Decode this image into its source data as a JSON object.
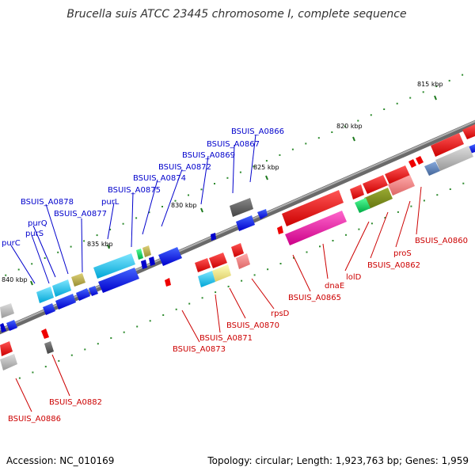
{
  "title": "Brucella suis ATCC 23445 chromosome I, complete sequence",
  "footer": {
    "accession": "Accession: NC_010169",
    "summary": "Topology: circular; Length: 1,923,763 bp; Genes: 1,959"
  },
  "ticks": {
    "t815": "815 kbp",
    "t820": "820 kbp",
    "t825": "825 kbp",
    "t830": "830 kbp",
    "t835": "835 kbp",
    "t840": "840 kbp"
  },
  "genes": {
    "BSUIS_A0866": "BSUIS_A0866",
    "BSUIS_A0867": "BSUIS_A0867",
    "BSUIS_A0869": "BSUIS_A0869",
    "BSUIS_A0872": "BSUIS_A0872",
    "BSUIS_A0874": "BSUIS_A0874",
    "BSUIS_A0875": "BSUIS_A0875",
    "purL": "purL",
    "BSUIS_A0877": "BSUIS_A0877",
    "BSUIS_A0878": "BSUIS_A0878",
    "purQ": "purQ",
    "purS": "purS",
    "purC": "purC",
    "BSUIS_A0860": "BSUIS_A0860",
    "proS": "proS",
    "BSUIS_A0862": "BSUIS_A0862",
    "lolD": "lolD",
    "dnaE": "dnaE",
    "BSUIS_A0865": "BSUIS_A0865",
    "rpsD": "rpsD",
    "BSUIS_A0870": "BSUIS_A0870",
    "BSUIS_A0871": "BSUIS_A0871",
    "BSUIS_A0873": "BSUIS_A0873",
    "BSUIS_A0882": "BSUIS_A0882",
    "BSUIS_A0886": "BSUIS_A0886"
  },
  "colors": {
    "reverse_strand_label": "#0000cc",
    "forward_strand_label": "#cc0000",
    "backbone": "#888888",
    "gc_skew_dot": "#2e8b2e"
  }
}
